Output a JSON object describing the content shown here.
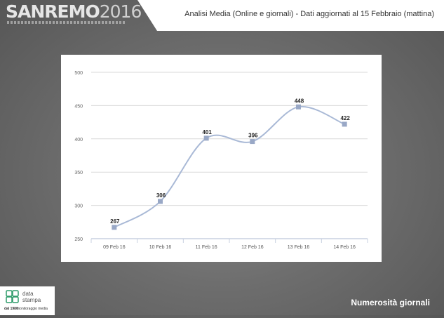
{
  "header": {
    "logo_text": "SANREMO",
    "logo_year": "2016",
    "title": "Analisi Media (Online e giornali) - Dati aggiornati al 15 Febbraio (mattina)"
  },
  "footer": {
    "brand_line1": "data",
    "brand_line2": "stampa",
    "brand_tagline_bold": "dal 1980",
    "brand_tagline": "monitoraggio media",
    "section_label": "Numerosità giornali"
  },
  "colors": {
    "line": "#a9b9d6",
    "marker": "#99a8c6",
    "grid": "#d9d9d9",
    "logo_green": "#2e9c6a"
  },
  "chart_data": {
    "type": "line",
    "title": "",
    "xlabel": "",
    "ylabel": "",
    "categories": [
      "09 Feb 16",
      "10 Feb 16",
      "11 Feb 16",
      "12 Feb 16",
      "13 Feb 16",
      "14 Feb 16"
    ],
    "values": [
      267,
      306,
      401,
      396,
      448,
      422
    ],
    "ylim": [
      250,
      500
    ],
    "yticks": [
      250,
      300,
      350,
      400,
      450,
      500
    ],
    "data_labels": [
      "267",
      "306",
      "401",
      "396",
      "448",
      "422"
    ],
    "grid": true,
    "smooth": true
  }
}
